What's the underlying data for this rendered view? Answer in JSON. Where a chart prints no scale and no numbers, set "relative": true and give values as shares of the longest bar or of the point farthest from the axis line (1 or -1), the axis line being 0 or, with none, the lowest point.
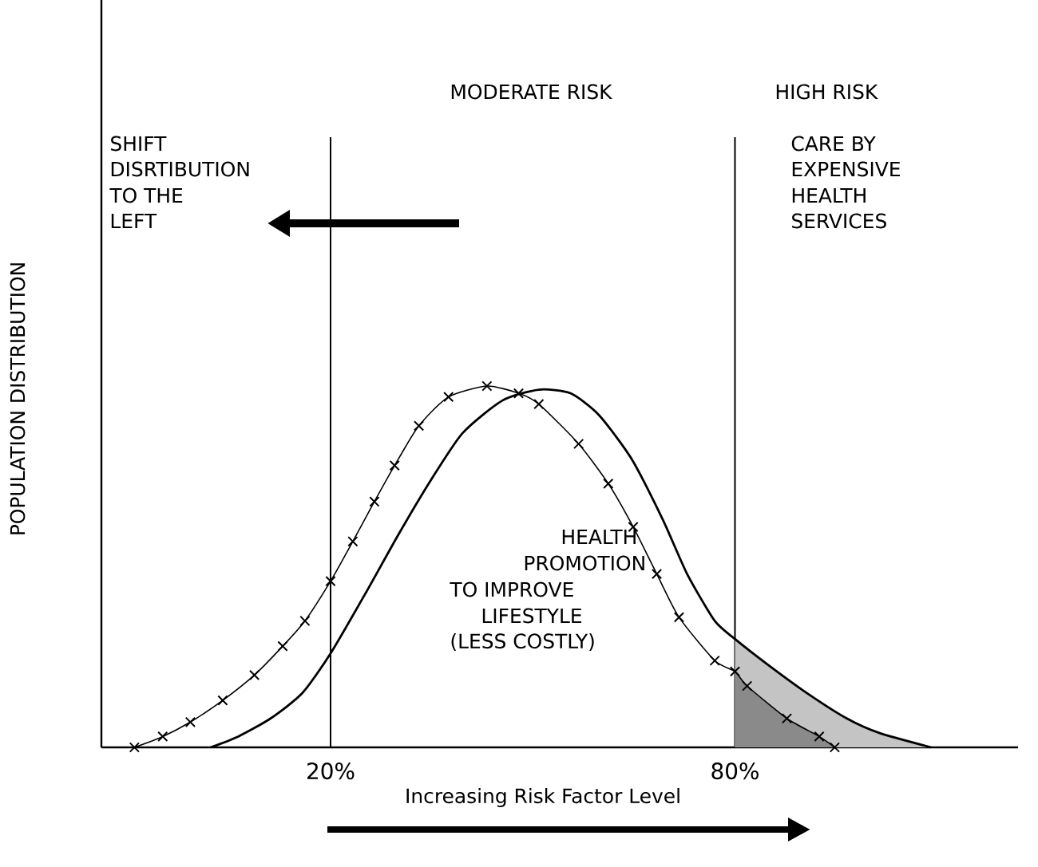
{
  "chart_data": {
    "type": "line",
    "relative": true,
    "xlabel": "Increasing Risk Factor Level",
    "ylabel": "POPULATION DISTRIBUTION",
    "xlim": [
      -14,
      122
    ],
    "xticks": [
      {
        "value": 20,
        "label": "20%"
      },
      {
        "value": 80,
        "label": "80%"
      }
    ],
    "series": [
      {
        "color": "#000000",
        "marker": "cross",
        "x": [
          -9.1,
          -4.9,
          -0.8,
          4.0,
          8.7,
          12.9,
          16.2,
          20.0,
          23.3,
          26.5,
          29.5,
          33.1,
          37.5,
          43.2,
          47.9,
          50.9,
          56.8,
          61.2,
          64.9,
          68.4,
          71.7,
          77.0,
          80.0,
          81.8,
          87.7,
          92.5,
          94.8
        ],
        "values": [
          0,
          0.03,
          0.07,
          0.13,
          0.2,
          0.28,
          0.35,
          0.46,
          0.57,
          0.68,
          0.78,
          0.89,
          0.97,
          1.0,
          0.98,
          0.95,
          0.84,
          0.73,
          0.61,
          0.48,
          0.36,
          0.24,
          0.21,
          0.17,
          0.08,
          0.03,
          0
        ]
      },
      {
        "color": "#000000",
        "marker": "none",
        "x": [
          2.2,
          6.3,
          11.1,
          15.8,
          20.0,
          25.3,
          30.1,
          34.9,
          39.6,
          45.5,
          50.9,
          55.6,
          59.8,
          64.6,
          69.3,
          72.9,
          77.0,
          80.0,
          84.8,
          90.7,
          96.6,
          101.4,
          109.1
        ],
        "values": [
          0,
          0.03,
          0.08,
          0.15,
          0.26,
          0.43,
          0.59,
          0.74,
          0.87,
          0.96,
          0.99,
          0.98,
          0.92,
          0.8,
          0.63,
          0.48,
          0.35,
          0.3,
          0.23,
          0.15,
          0.08,
          0.04,
          0
        ]
      },
      {
        "type": "area",
        "color": "#c4c4c4",
        "x": [
          80.0,
          84.8,
          90.7,
          96.6,
          101.4,
          109.1
        ],
        "values": [
          0.3,
          0.23,
          0.15,
          0.08,
          0.04,
          0
        ]
      },
      {
        "type": "area",
        "color": "#8a8a8a",
        "x": [
          80.0,
          81.8,
          87.7,
          92.5,
          94.8
        ],
        "values": [
          0.21,
          0.17,
          0.08,
          0.03,
          0
        ]
      }
    ],
    "ref_lines": [
      {
        "axis": "x",
        "value": 20,
        "color": "#000000"
      },
      {
        "axis": "x",
        "value": 80,
        "color": "#000000"
      }
    ],
    "annotations": [
      "MODERATE RISK",
      "HIGH RISK",
      "SHIFT",
      "DISRTIBUTION",
      "TO THE",
      "LEFT",
      "CARE BY",
      "EXPENSIVE",
      "HEALTH",
      "SERVICES",
      "HEALTH",
      "PROMOTION",
      "TO IMPROVE",
      "LIFESTYLE",
      "(LESS COSTLY)"
    ]
  }
}
